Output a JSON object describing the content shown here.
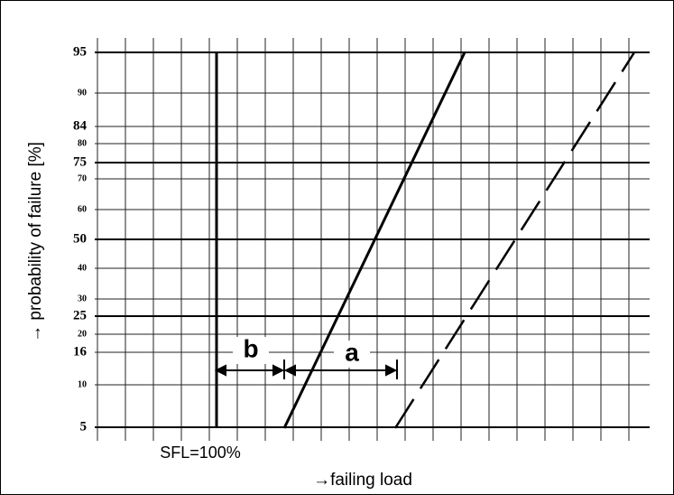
{
  "diagram": {
    "y_axis_label": "→ probability of failure [%]",
    "x_axis_label": "→failing load",
    "sfl_label": "SFL=100%",
    "label_a": "a",
    "label_b": "b",
    "ticks": [
      "95",
      "90",
      "84",
      "80",
      "75",
      "70",
      "60",
      "50",
      "40",
      "30",
      "25",
      "20",
      "16",
      "10",
      "5"
    ]
  }
}
